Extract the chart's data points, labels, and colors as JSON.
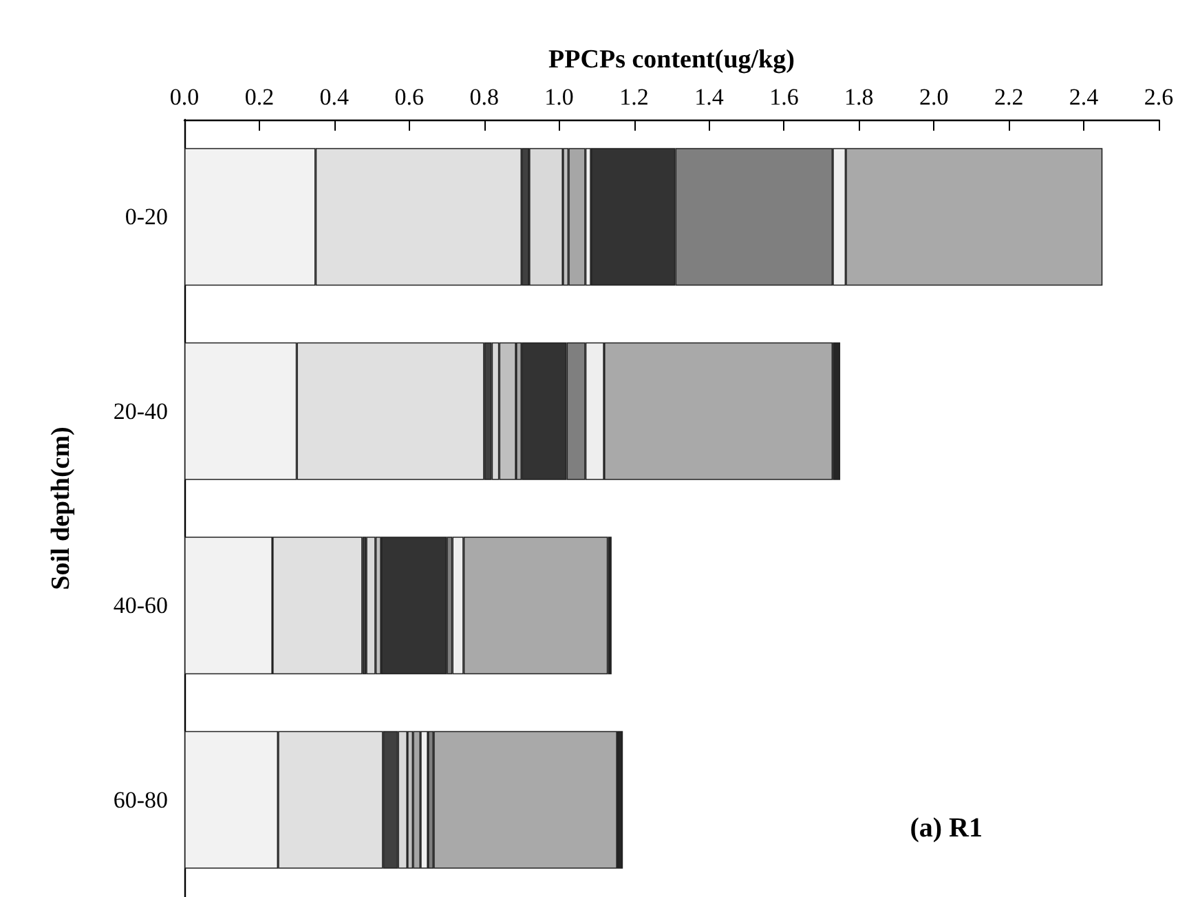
{
  "chart_data": {
    "type": "bar",
    "orientation": "horizontal",
    "stacked": true,
    "xlabel": "PPCPs content(ug/kg)",
    "ylabel": "Soil depth(cm)",
    "categories": [
      "0-20",
      "20-40",
      "40-60",
      "60-80"
    ],
    "xlim": [
      0,
      2.6
    ],
    "xticks": [
      {
        "value": 0,
        "label": "0.0"
      },
      {
        "value": 0.2,
        "label": "0.2"
      },
      {
        "value": 0.4,
        "label": "0.4"
      },
      {
        "value": 0.6,
        "label": "0.6"
      },
      {
        "value": 0.8,
        "label": "0.8"
      },
      {
        "value": 1,
        "label": "1.0"
      },
      {
        "value": 1.2,
        "label": "1.2"
      },
      {
        "value": 1.4,
        "label": "1.4"
      },
      {
        "value": 1.6,
        "label": "1.6"
      },
      {
        "value": 1.8,
        "label": "1.8"
      },
      {
        "value": 2,
        "label": "2.0"
      },
      {
        "value": 2.2,
        "label": "2.2"
      },
      {
        "value": 2.4,
        "label": "2.4"
      },
      {
        "value": 2.6,
        "label": "2.6"
      }
    ],
    "grid": false,
    "annotations": [
      "(a) R1"
    ],
    "series": [
      {
        "color": "#f2f2f2",
        "values": [
          0.35,
          0.3,
          0.235,
          0.25
        ]
      },
      {
        "color": "#e0e0e0",
        "values": [
          0.55,
          0.5,
          0.24,
          0.28
        ]
      },
      {
        "color": "#404040",
        "values": [
          0.02,
          0.02,
          0.01,
          0.04
        ]
      },
      {
        "color": "#d9d9d9",
        "values": [
          0.09,
          0.02,
          0.025,
          0.025
        ]
      },
      {
        "color": "#bfbfbf",
        "values": [
          0.015,
          0.045,
          0.015,
          0.015
        ]
      },
      {
        "color": "#a6a6a6",
        "values": [
          0.045,
          0.015,
          null,
          0.02
        ]
      },
      {
        "color": "#f0f0f0",
        "values": [
          0.015,
          null,
          null,
          0.02
        ]
      },
      {
        "color": "#333333",
        "values": [
          0.225,
          0.12,
          0.175,
          null
        ]
      },
      {
        "color": "#7f7f7f",
        "values": [
          0.42,
          0.05,
          0.015,
          0.015
        ]
      },
      {
        "color": "#eeeeee",
        "values": [
          0.035,
          0.05,
          0.03,
          null
        ]
      },
      {
        "color": "#a9a9a9",
        "values": [
          0.685,
          0.61,
          0.385,
          0.49
        ]
      },
      {
        "color": "#262626",
        "values": [
          null,
          0.02,
          0.01,
          0.015
        ]
      }
    ]
  }
}
